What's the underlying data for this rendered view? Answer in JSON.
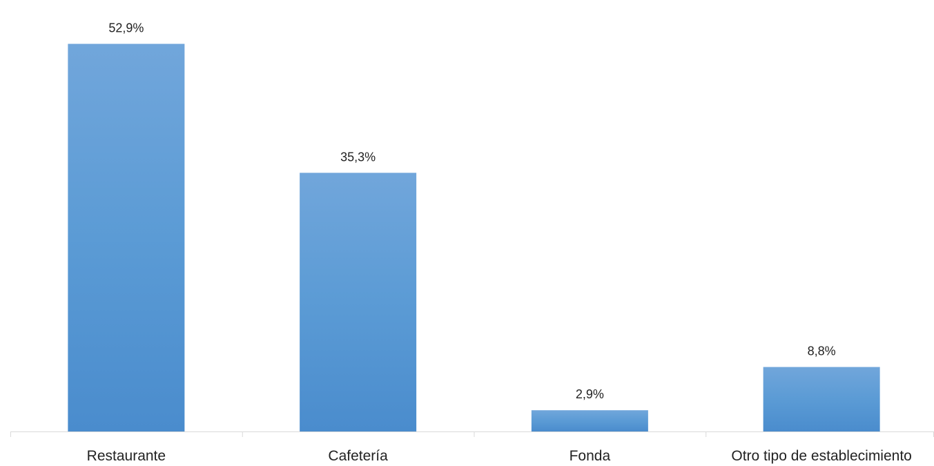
{
  "chart_data": {
    "type": "bar",
    "title": "",
    "xlabel": "",
    "ylabel": "",
    "categories": [
      "Restaurante",
      "Cafetería",
      "Fonda",
      "Otro tipo de establecimiento"
    ],
    "values": [
      52.9,
      35.3,
      2.9,
      8.8
    ],
    "data_labels": [
      "52,9%",
      "35,3%",
      "2,9%",
      "8,8%"
    ],
    "unit": "%",
    "ylim": [
      0,
      57
    ],
    "grid": false,
    "legend": "none",
    "bar_color": "#5b9bd5",
    "bar_color_top": "#71a6db",
    "bar_color_bottom": "#4a8ccd",
    "axis_color": "#d9d9d9"
  }
}
